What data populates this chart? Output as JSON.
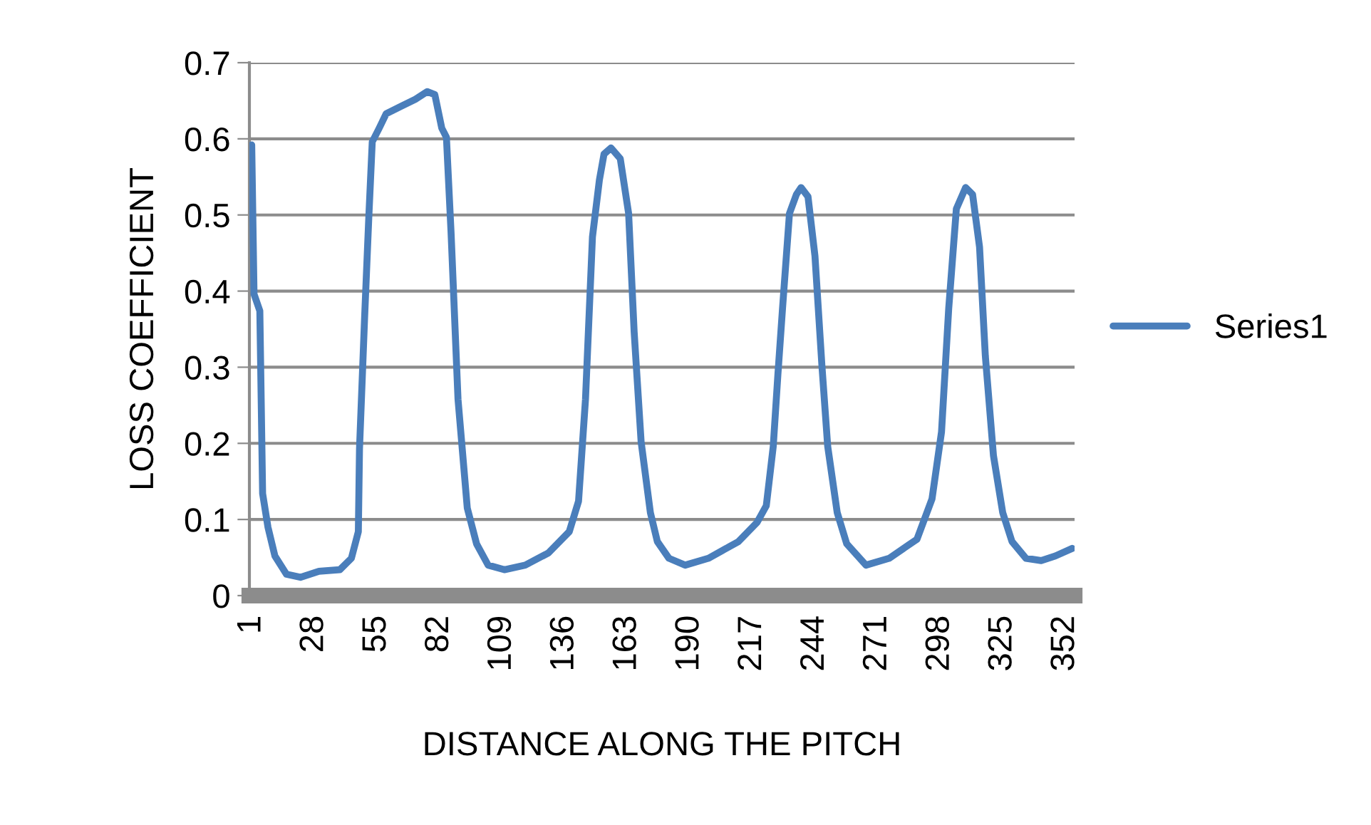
{
  "chart_data": {
    "type": "line",
    "xlabel": "DISTANCE ALONG THE PITCH",
    "ylabel": "LOSS COEFFICIENT",
    "xlim": [
      0,
      356
    ],
    "xticks": [
      1,
      28,
      55,
      82,
      109,
      136,
      163,
      190,
      217,
      244,
      271,
      298,
      325,
      352
    ],
    "ylim": [
      0,
      0.7
    ],
    "yticks": [
      0,
      0.1,
      0.2,
      0.3,
      0.4,
      0.5,
      0.6,
      0.7
    ],
    "grid": "y",
    "legend": "right",
    "marker": "none",
    "line_style": "solid",
    "series": [
      {
        "name": "Series1",
        "color": "#4a7ebb",
        "x": [
          1,
          2,
          4.5,
          5.7,
          8,
          11,
          16,
          22,
          30,
          39,
          44,
          47,
          47.5,
          49.7,
          51.5,
          53,
          56,
          59,
          65,
          71.6,
          76.7,
          80,
          83,
          85,
          87,
          90,
          94,
          98,
          103,
          110,
          119,
          129,
          138,
          142,
          145,
          148,
          151,
          153,
          156,
          160,
          163.6,
          166,
          169,
          173,
          176,
          181,
          188,
          198,
          211,
          219,
          223,
          226,
          228,
          230,
          233,
          236,
          238,
          241,
          244,
          247,
          249.5,
          253.6,
          257.7,
          266,
          276,
          288,
          294.5,
          298.6,
          301.7,
          305,
          309,
          312,
          315,
          317.5,
          321,
          325,
          329,
          335,
          341.6,
          347.7,
          355
        ],
        "values": [
          0.592,
          0.396,
          0.374,
          0.134,
          0.09,
          0.052,
          0.028,
          0.024,
          0.032,
          0.034,
          0.049,
          0.084,
          0.193,
          0.365,
          0.496,
          0.596,
          0.614,
          0.633,
          0.642,
          0.652,
          0.662,
          0.658,
          0.614,
          0.602,
          0.477,
          0.258,
          0.115,
          0.068,
          0.04,
          0.034,
          0.04,
          0.056,
          0.084,
          0.124,
          0.258,
          0.471,
          0.546,
          0.58,
          0.588,
          0.574,
          0.502,
          0.346,
          0.202,
          0.109,
          0.071,
          0.049,
          0.04,
          0.049,
          0.071,
          0.096,
          0.118,
          0.196,
          0.29,
          0.377,
          0.502,
          0.527,
          0.536,
          0.524,
          0.446,
          0.302,
          0.196,
          0.109,
          0.068,
          0.04,
          0.049,
          0.074,
          0.127,
          0.215,
          0.377,
          0.508,
          0.536,
          0.527,
          0.458,
          0.315,
          0.184,
          0.109,
          0.071,
          0.049,
          0.046,
          0.052,
          0.062
        ]
      }
    ]
  }
}
